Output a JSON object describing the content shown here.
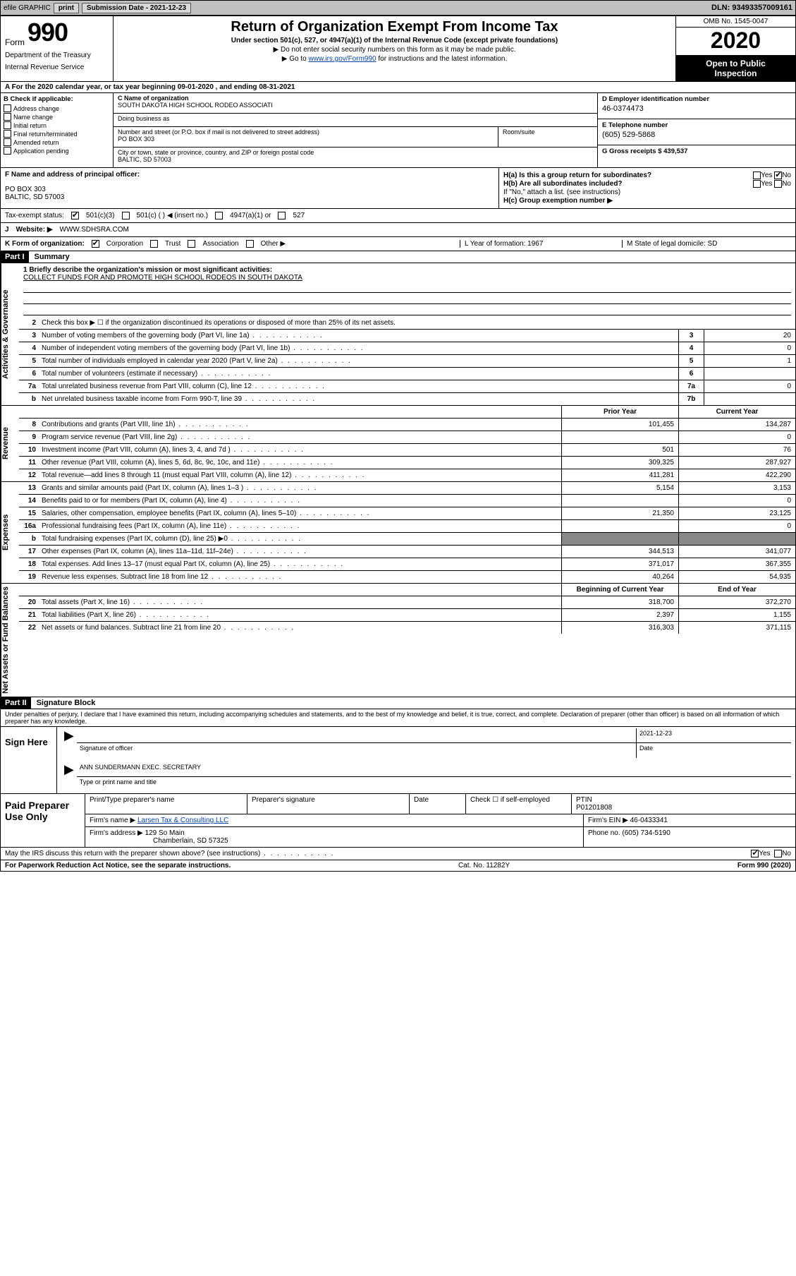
{
  "colors": {
    "topbar_bg": "#c0c0c0",
    "btn_bg": "#d8d8d8",
    "black": "#000000",
    "link": "#0645ad"
  },
  "topbar": {
    "efile": "efile GRAPHIC",
    "print": "print",
    "sub_label": "Submission Date - 2021-12-23",
    "dln": "DLN: 93493357009161"
  },
  "header": {
    "form_word": "Form",
    "form_num": "990",
    "dept1": "Department of the Treasury",
    "dept2": "Internal Revenue Service",
    "title": "Return of Organization Exempt From Income Tax",
    "subtitle": "Under section 501(c), 527, or 4947(a)(1) of the Internal Revenue Code (except private foundations)",
    "instruct1": "Do not enter social security numbers on this form as it may be made public.",
    "instruct2a": "Go to ",
    "instruct2_link": "www.irs.gov/Form990",
    "instruct2b": " for instructions and the latest information.",
    "omb": "OMB No. 1545-0047",
    "year": "2020",
    "open1": "Open to Public",
    "open2": "Inspection"
  },
  "line_a": "A For the 2020 calendar year, or tax year beginning 09-01-2020    , and ending 08-31-2021",
  "col_b": {
    "head": "B Check if applicable:",
    "items": [
      "Address change",
      "Name change",
      "Initial return",
      "Final return/terminated",
      "Amended return",
      "Application pending"
    ]
  },
  "col_c": {
    "name_lbl": "C Name of organization",
    "name": "SOUTH DAKOTA HIGH SCHOOL RODEO ASSOCIATI",
    "dba_lbl": "Doing business as",
    "street_lbl": "Number and street (or P.O. box if mail is not delivered to street address)",
    "room_lbl": "Room/suite",
    "street": "PO BOX 303",
    "city_lbl": "City or town, state or province, country, and ZIP or foreign postal code",
    "city": "BALTIC, SD  57003"
  },
  "col_de": {
    "d_lbl": "D Employer identification number",
    "d_val": "46-0374473",
    "e_lbl": "E Telephone number",
    "e_val": "(605) 529-5868",
    "g_lbl": "G Gross receipts $ 439,537"
  },
  "fh": {
    "f_lbl": "F  Name and address of principal officer:",
    "f_addr1": "PO BOX 303",
    "f_addr2": "BALTIC, SD  57003",
    "h_a": "H(a)  Is this a group return for subordinates?",
    "h_b": "H(b)  Are all subordinates included?",
    "h_b_note": "If \"No,\" attach a list. (see instructions)",
    "h_c": "H(c)  Group exemption number ▶",
    "yes": "Yes",
    "no": "No"
  },
  "tax_status": {
    "lbl": "Tax-exempt status:",
    "opt1": "501(c)(3)",
    "opt2": "501(c) (  ) ◀ (insert no.)",
    "opt3": "4947(a)(1) or",
    "opt4": "527"
  },
  "j": {
    "lbl": "J",
    "text": "Website: ▶",
    "val": "WWW.SDHSRA.COM"
  },
  "k": {
    "lbl": "K Form of organization:",
    "opts": [
      "Corporation",
      "Trust",
      "Association",
      "Other ▶"
    ],
    "l": "L Year of formation: 1967",
    "m": "M State of legal domicile: SD"
  },
  "part1": {
    "head": "Part I",
    "title": "Summary",
    "tab1": "Activities & Governance",
    "tab2": "Revenue",
    "tab3": "Expenses",
    "tab4": "Net Assets or Fund Balances",
    "mission_lbl": "1  Briefly describe the organization's mission or most significant activities:",
    "mission": "COLLECT FUNDS FOR AND PROMOTE HIGH SCHOOL RODEOS IN SOUTH DAKOTA",
    "line2": "Check this box ▶ ☐  if the organization discontinued its operations or disposed of more than 25% of its net assets.",
    "rows_gov": [
      {
        "n": "3",
        "t": "Number of voting members of the governing body (Part VI, line 1a)",
        "box": "3",
        "v": "20"
      },
      {
        "n": "4",
        "t": "Number of independent voting members of the governing body (Part VI, line 1b)",
        "box": "4",
        "v": "0"
      },
      {
        "n": "5",
        "t": "Total number of individuals employed in calendar year 2020 (Part V, line 2a)",
        "box": "5",
        "v": "1"
      },
      {
        "n": "6",
        "t": "Total number of volunteers (estimate if necessary)",
        "box": "6",
        "v": ""
      },
      {
        "n": "7a",
        "t": "Total unrelated business revenue from Part VIII, column (C), line 12",
        "box": "7a",
        "v": "0"
      },
      {
        "n": "b",
        "t": "Net unrelated business taxable income from Form 990-T, line 39",
        "box": "7b",
        "v": ""
      }
    ],
    "prior_hdr": "Prior Year",
    "curr_hdr": "Current Year",
    "rows_rev": [
      {
        "n": "8",
        "t": "Contributions and grants (Part VIII, line 1h)",
        "p": "101,455",
        "c": "134,287"
      },
      {
        "n": "9",
        "t": "Program service revenue (Part VIII, line 2g)",
        "p": "",
        "c": "0"
      },
      {
        "n": "10",
        "t": "Investment income (Part VIII, column (A), lines 3, 4, and 7d )",
        "p": "501",
        "c": "76"
      },
      {
        "n": "11",
        "t": "Other revenue (Part VIII, column (A), lines 5, 6d, 8c, 9c, 10c, and 11e)",
        "p": "309,325",
        "c": "287,927"
      },
      {
        "n": "12",
        "t": "Total revenue—add lines 8 through 11 (must equal Part VIII, column (A), line 12)",
        "p": "411,281",
        "c": "422,290"
      }
    ],
    "rows_exp": [
      {
        "n": "13",
        "t": "Grants and similar amounts paid (Part IX, column (A), lines 1–3 )",
        "p": "5,154",
        "c": "3,153"
      },
      {
        "n": "14",
        "t": "Benefits paid to or for members (Part IX, column (A), line 4)",
        "p": "",
        "c": "0"
      },
      {
        "n": "15",
        "t": "Salaries, other compensation, employee benefits (Part IX, column (A), lines 5–10)",
        "p": "21,350",
        "c": "23,125"
      },
      {
        "n": "16a",
        "t": "Professional fundraising fees (Part IX, column (A), line 11e)",
        "p": "",
        "c": "0"
      },
      {
        "n": "b",
        "t": "Total fundraising expenses (Part IX, column (D), line 25) ▶0",
        "p": "—",
        "c": "—"
      },
      {
        "n": "17",
        "t": "Other expenses (Part IX, column (A), lines 11a–11d, 11f–24e)",
        "p": "344,513",
        "c": "341,077"
      },
      {
        "n": "18",
        "t": "Total expenses. Add lines 13–17 (must equal Part IX, column (A), line 25)",
        "p": "371,017",
        "c": "367,355"
      },
      {
        "n": "19",
        "t": "Revenue less expenses. Subtract line 18 from line 12",
        "p": "40,264",
        "c": "54,935"
      }
    ],
    "beg_hdr": "Beginning of Current Year",
    "end_hdr": "End of Year",
    "rows_net": [
      {
        "n": "20",
        "t": "Total assets (Part X, line 16)",
        "p": "318,700",
        "c": "372,270"
      },
      {
        "n": "21",
        "t": "Total liabilities (Part X, line 26)",
        "p": "2,397",
        "c": "1,155"
      },
      {
        "n": "22",
        "t": "Net assets or fund balances. Subtract line 21 from line 20",
        "p": "316,303",
        "c": "371,115"
      }
    ]
  },
  "part2": {
    "head": "Part II",
    "title": "Signature Block",
    "penalties": "Under penalties of perjury, I declare that I have examined this return, including accompanying schedules and statements, and to the best of my knowledge and belief, it is true, correct, and complete. Declaration of preparer (other than officer) is based on all information of which preparer has any knowledge.",
    "sign_here": "Sign Here",
    "sig_officer": "Signature of officer",
    "date_lbl": "Date",
    "date_val": "2021-12-23",
    "typed_name": "ANN SUNDERMANN  EXEC. SECRETARY",
    "typed_lbl": "Type or print name and title",
    "paid": "Paid Preparer Use Only",
    "prep_name_lbl": "Print/Type preparer's name",
    "prep_sig_lbl": "Preparer's signature",
    "check_if": "Check ☐ if self-employed",
    "ptin_lbl": "PTIN",
    "ptin": "P01201808",
    "firm_name_lbl": "Firm's name    ▶",
    "firm_name": "Larsen Tax & Consulting LLC",
    "firm_ein_lbl": "Firm's EIN ▶",
    "firm_ein": "46-0433341",
    "firm_addr_lbl": "Firm's address ▶",
    "firm_addr1": "129 So Main",
    "firm_addr2": "Chamberlain, SD  57325",
    "phone_lbl": "Phone no.",
    "phone": "(605) 734-5190",
    "discuss": "May the IRS discuss this return with the preparer shown above? (see instructions)",
    "paperwork": "For Paperwork Reduction Act Notice, see the separate instructions.",
    "catno": "Cat. No. 11282Y",
    "formfoot": "Form 990 (2020)"
  }
}
